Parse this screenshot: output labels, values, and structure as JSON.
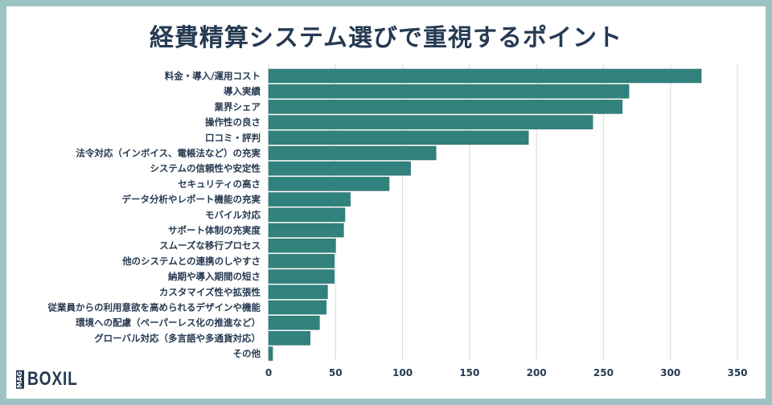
{
  "title": "経費精算システム選びで重視するポイント",
  "logo": {
    "mag": "MAG",
    "name": "BOXIL"
  },
  "chart_data": {
    "type": "bar",
    "orientation": "horizontal",
    "title": "経費精算システム選びで重視するポイント",
    "xlabel": "",
    "ylabel": "",
    "xlim": [
      0,
      350
    ],
    "xticks": [
      0,
      50,
      100,
      150,
      200,
      250,
      300,
      350
    ],
    "grid": true,
    "bar_color": "#31827d",
    "categories": [
      "料金・導入/運用コスト",
      "導入実績",
      "業界シェア",
      "操作性の良さ",
      "口コミ・評判",
      "法令対応（インボイス、電帳法など）の充実",
      "システムの信頼性や安定性",
      "セキュリティの高さ",
      "データ分析やレポート機能の充実",
      "モバイル対応",
      "サポート体制の充実度",
      "スムーズな移行プロセス",
      "他のシステムとの連携のしやすさ",
      "納期や導入期間の短さ",
      "カスタマイズ性や拡張性",
      "従業員からの利用意欲を高められるデザインや機能",
      "環境への配慮（ペーパーレス化の推進など）",
      "グローバル対応（多言語や多通貨対応）",
      "その他"
    ],
    "values": [
      323,
      269,
      264,
      242,
      194,
      125,
      106,
      90,
      61,
      57,
      56,
      50,
      49,
      49,
      44,
      43,
      38,
      31,
      3
    ]
  }
}
